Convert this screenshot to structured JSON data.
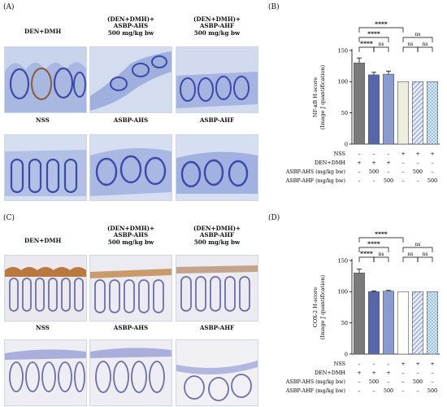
{
  "panel_labels": {
    "a": "(A)",
    "b": "(B)",
    "c": "(C)",
    "d": "(D)"
  },
  "panel_a": {
    "titles": {
      "den": "DEN+DMH",
      "ahs": [
        "(DEN+DMH)+",
        "ASBP-AHS",
        "500 mg/kg bw"
      ],
      "ahf": [
        "(DEN+DMH)+",
        "ASBP-AHF",
        "500 mg/kg bw"
      ],
      "nss": "NSS",
      "ahs_only": "ASBP-AHS",
      "ahf_only": "ASBP-AHF"
    }
  },
  "panel_c": {
    "titles": {
      "den": "DEN+DMH",
      "ahs": [
        "(DEN+DMH)+",
        "ASBP-AHS",
        "500 mg/kg bw"
      ],
      "ahf": [
        "(DEN+DMH)+",
        "ASBP-AHF",
        "500 mg/kg bw"
      ],
      "nss": "NSS",
      "ahs_only": "ASBP-AHS",
      "ahf_only": "ASBP-AHF"
    }
  },
  "colors": {
    "bar_den": "#7a7a7a",
    "bar_ahs": "#5566aa",
    "bar_ahf": "#8a9bd0",
    "bar_nss_b": "#efeede",
    "bar_nss_d": "#ffffff",
    "bar_hatch_a": "#6b7fd0",
    "bar_hatch_b": "#8fb9d9",
    "he_nuclei": "#3b4aa8",
    "he_bg_a": "#c4d0ea",
    "ihc_bg": "#e7e6ee",
    "ihc_brown": "#a86a35"
  },
  "chart_data": [
    {
      "type": "bar",
      "panel": "B",
      "ylabel": [
        "NF-κB H-score",
        "(Image J quantification)"
      ],
      "ylim": [
        0,
        150
      ],
      "yticks": [
        0,
        50,
        100,
        150
      ],
      "values": [
        130,
        111,
        112,
        100,
        100,
        100
      ],
      "errors": [
        8,
        4,
        5,
        0,
        0,
        0
      ],
      "significance": [
        {
          "from": 0,
          "to": 3,
          "label": "****",
          "level": 3
        },
        {
          "from": 0,
          "to": 2,
          "label": "****",
          "level": 2
        },
        {
          "from": 0,
          "to": 1,
          "label": "****",
          "level": 1
        },
        {
          "from": 1,
          "to": 2,
          "label": "ns",
          "level": 1
        },
        {
          "from": 3,
          "to": 4,
          "label": "ns",
          "level": 1
        },
        {
          "from": 3,
          "to": 5,
          "label": "ns",
          "level": 2
        },
        {
          "from": 4,
          "to": 5,
          "label": "ns",
          "level": 1
        }
      ],
      "table_rows": [
        {
          "label": "NSS",
          "cells": [
            "–",
            "–",
            "–",
            "+",
            "+",
            "+"
          ]
        },
        {
          "label": "DEN+DMH",
          "cells": [
            "+",
            "+",
            "+",
            "–",
            "–",
            "–"
          ]
        },
        {
          "label": "ASBP-AHS (mg/kg bw)",
          "cells": [
            "–",
            "500",
            "–",
            "–",
            "500",
            "–"
          ]
        },
        {
          "label": "ASBP-AHF (mg/kg bw)",
          "cells": [
            "–",
            "–",
            "500",
            "–",
            "–",
            "500"
          ]
        }
      ]
    },
    {
      "type": "bar",
      "panel": "D",
      "ylabel": [
        "COX-2 H-score",
        "(Image J quantification)"
      ],
      "ylim": [
        0,
        150
      ],
      "yticks": [
        0,
        50,
        100,
        150
      ],
      "values": [
        130,
        100,
        101,
        100,
        100,
        100
      ],
      "errors": [
        6,
        1,
        1,
        0,
        0,
        0
      ],
      "significance": [
        {
          "from": 0,
          "to": 3,
          "label": "****",
          "level": 3
        },
        {
          "from": 0,
          "to": 2,
          "label": "****",
          "level": 2
        },
        {
          "from": 0,
          "to": 1,
          "label": "****",
          "level": 1
        },
        {
          "from": 1,
          "to": 2,
          "label": "ns",
          "level": 1
        },
        {
          "from": 3,
          "to": 4,
          "label": "ns",
          "level": 1
        },
        {
          "from": 3,
          "to": 5,
          "label": "ns",
          "level": 2
        },
        {
          "from": 4,
          "to": 5,
          "label": "ns",
          "level": 1
        }
      ],
      "table_rows": [
        {
          "label": "NSS",
          "cells": [
            "–",
            "–",
            "–",
            "+",
            "+",
            "+"
          ]
        },
        {
          "label": "DEN+DMH",
          "cells": [
            "+",
            "+",
            "+",
            "–",
            "–",
            "–"
          ]
        },
        {
          "label": "ASBP-AHS (mg/kg bw)",
          "cells": [
            "–",
            "500",
            "–",
            "–",
            "500",
            "–"
          ]
        },
        {
          "label": "ASBP-AHF (mg/kg bw)",
          "cells": [
            "–",
            "–",
            "500",
            "–",
            "–",
            "500"
          ]
        }
      ]
    }
  ]
}
